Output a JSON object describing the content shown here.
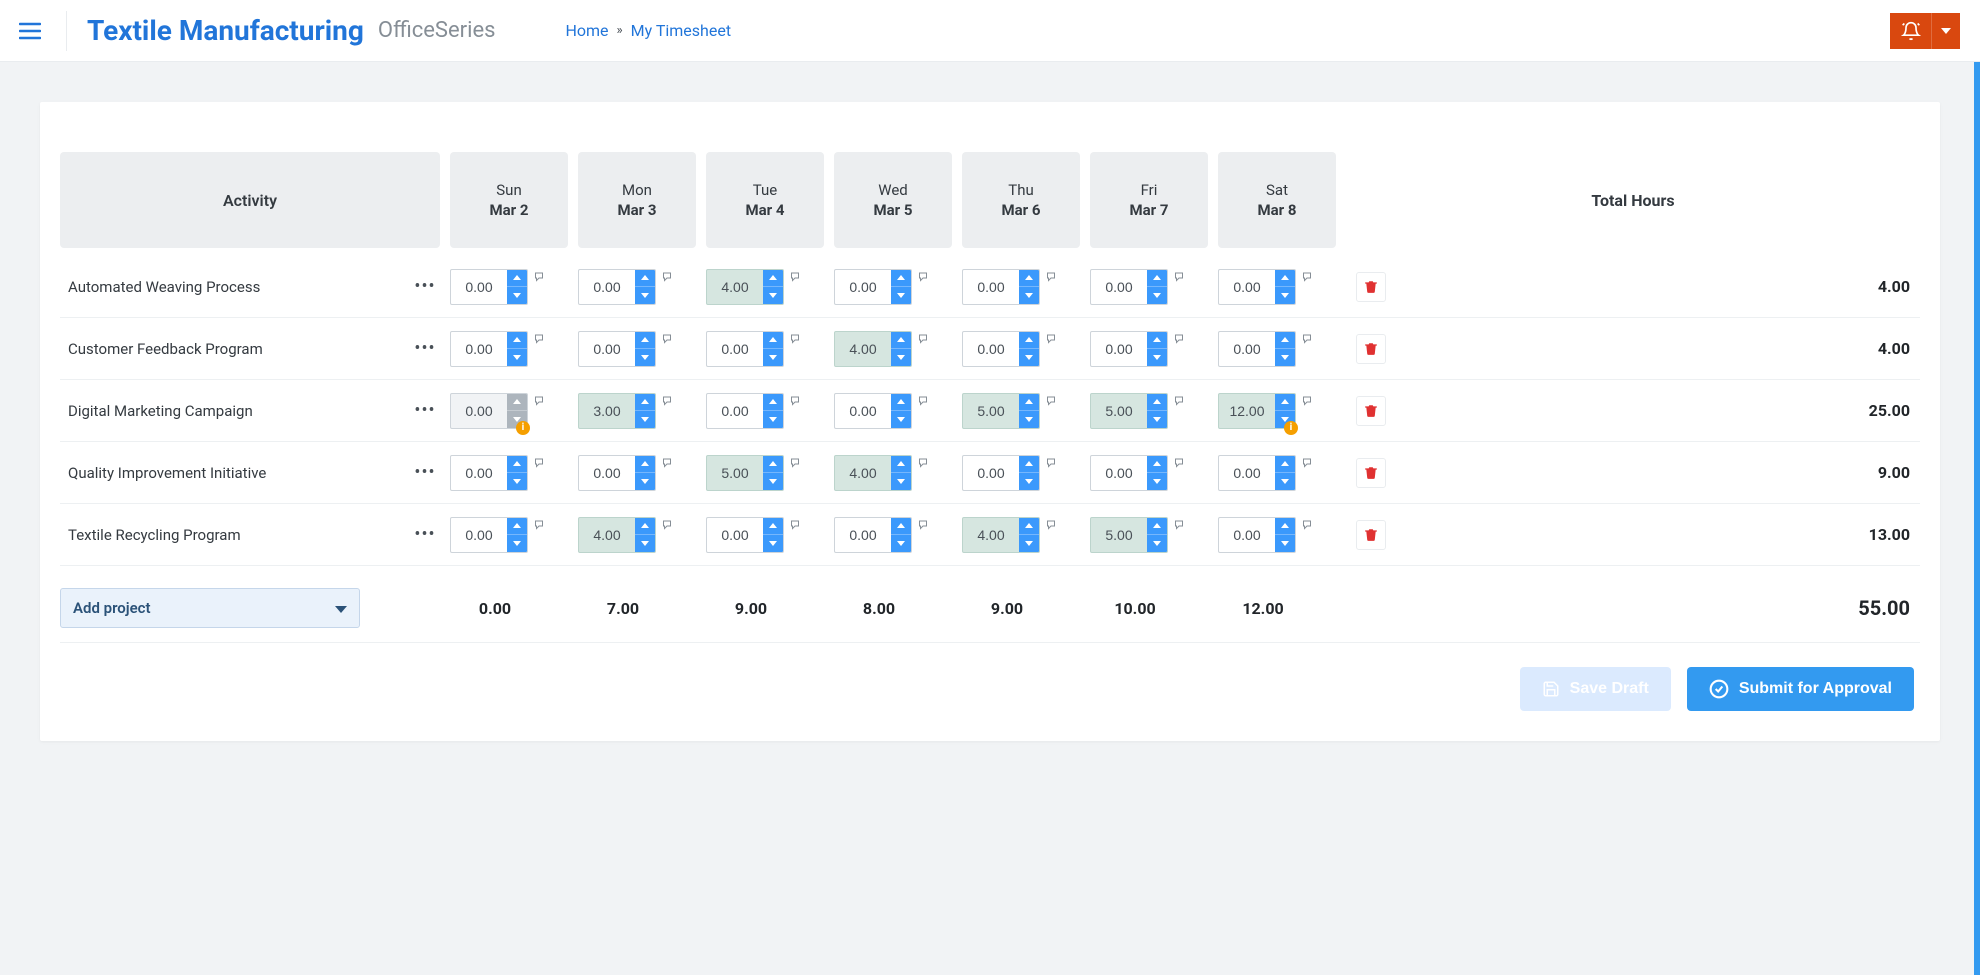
{
  "header": {
    "app_title": "Textile Manufacturing",
    "app_series": "OfficeSeries",
    "breadcrumb_home": "Home",
    "breadcrumb_sep": "»",
    "breadcrumb_current": "My Timesheet"
  },
  "colors": {
    "primary_blue": "#2175d9",
    "accent_blue": "#339af0",
    "spinner_blue": "#3b99fc",
    "alert_red": "#d9480f",
    "delete_red": "#e03131",
    "filled_green": "#d6e6e0",
    "warn_orange": "#f59f00",
    "bg": "#f1f3f5"
  },
  "table": {
    "activity_header": "Activity",
    "total_header": "Total Hours",
    "days": [
      {
        "name": "Sun",
        "date": "Mar 2"
      },
      {
        "name": "Mon",
        "date": "Mar 3"
      },
      {
        "name": "Tue",
        "date": "Mar 4"
      },
      {
        "name": "Wed",
        "date": "Mar 5"
      },
      {
        "name": "Thu",
        "date": "Mar 6"
      },
      {
        "name": "Fri",
        "date": "Mar 7"
      },
      {
        "name": "Sat",
        "date": "Mar 8"
      }
    ],
    "rows": [
      {
        "activity": "Automated Weaving Process",
        "cells": [
          {
            "value": "0.00",
            "filled": false,
            "disabled": false,
            "warn": false
          },
          {
            "value": "0.00",
            "filled": false,
            "disabled": false,
            "warn": false
          },
          {
            "value": "4.00",
            "filled": true,
            "disabled": false,
            "warn": false
          },
          {
            "value": "0.00",
            "filled": false,
            "disabled": false,
            "warn": false
          },
          {
            "value": "0.00",
            "filled": false,
            "disabled": false,
            "warn": false
          },
          {
            "value": "0.00",
            "filled": false,
            "disabled": false,
            "warn": false
          },
          {
            "value": "0.00",
            "filled": false,
            "disabled": false,
            "warn": false
          }
        ],
        "total": "4.00"
      },
      {
        "activity": "Customer Feedback Program",
        "cells": [
          {
            "value": "0.00",
            "filled": false,
            "disabled": false,
            "warn": false
          },
          {
            "value": "0.00",
            "filled": false,
            "disabled": false,
            "warn": false
          },
          {
            "value": "0.00",
            "filled": false,
            "disabled": false,
            "warn": false
          },
          {
            "value": "4.00",
            "filled": true,
            "disabled": false,
            "warn": false
          },
          {
            "value": "0.00",
            "filled": false,
            "disabled": false,
            "warn": false
          },
          {
            "value": "0.00",
            "filled": false,
            "disabled": false,
            "warn": false
          },
          {
            "value": "0.00",
            "filled": false,
            "disabled": false,
            "warn": false
          }
        ],
        "total": "4.00"
      },
      {
        "activity": "Digital Marketing Campaign",
        "cells": [
          {
            "value": "0.00",
            "filled": false,
            "disabled": true,
            "warn": true
          },
          {
            "value": "3.00",
            "filled": true,
            "disabled": false,
            "warn": false
          },
          {
            "value": "0.00",
            "filled": false,
            "disabled": false,
            "warn": false
          },
          {
            "value": "0.00",
            "filled": false,
            "disabled": false,
            "warn": false
          },
          {
            "value": "5.00",
            "filled": true,
            "disabled": false,
            "warn": false
          },
          {
            "value": "5.00",
            "filled": true,
            "disabled": false,
            "warn": false
          },
          {
            "value": "12.00",
            "filled": true,
            "disabled": false,
            "warn": true
          }
        ],
        "total": "25.00"
      },
      {
        "activity": "Quality Improvement Initiative",
        "cells": [
          {
            "value": "0.00",
            "filled": false,
            "disabled": false,
            "warn": false
          },
          {
            "value": "0.00",
            "filled": false,
            "disabled": false,
            "warn": false
          },
          {
            "value": "5.00",
            "filled": true,
            "disabled": false,
            "warn": false
          },
          {
            "value": "4.00",
            "filled": true,
            "disabled": false,
            "warn": false
          },
          {
            "value": "0.00",
            "filled": false,
            "disabled": false,
            "warn": false
          },
          {
            "value": "0.00",
            "filled": false,
            "disabled": false,
            "warn": false
          },
          {
            "value": "0.00",
            "filled": false,
            "disabled": false,
            "warn": false
          }
        ],
        "total": "9.00"
      },
      {
        "activity": "Textile Recycling Program",
        "cells": [
          {
            "value": "0.00",
            "filled": false,
            "disabled": false,
            "warn": false
          },
          {
            "value": "4.00",
            "filled": true,
            "disabled": false,
            "warn": false
          },
          {
            "value": "0.00",
            "filled": false,
            "disabled": false,
            "warn": false
          },
          {
            "value": "0.00",
            "filled": false,
            "disabled": false,
            "warn": false
          },
          {
            "value": "4.00",
            "filled": true,
            "disabled": false,
            "warn": false
          },
          {
            "value": "5.00",
            "filled": true,
            "disabled": false,
            "warn": false
          },
          {
            "value": "0.00",
            "filled": false,
            "disabled": false,
            "warn": false
          }
        ],
        "total": "13.00"
      }
    ],
    "column_totals": [
      "0.00",
      "7.00",
      "9.00",
      "8.00",
      "9.00",
      "10.00",
      "12.00"
    ],
    "grand_total": "55.00"
  },
  "footer": {
    "add_project_label": "Add project",
    "save_draft_label": "Save Draft",
    "submit_label": "Submit for Approval"
  }
}
